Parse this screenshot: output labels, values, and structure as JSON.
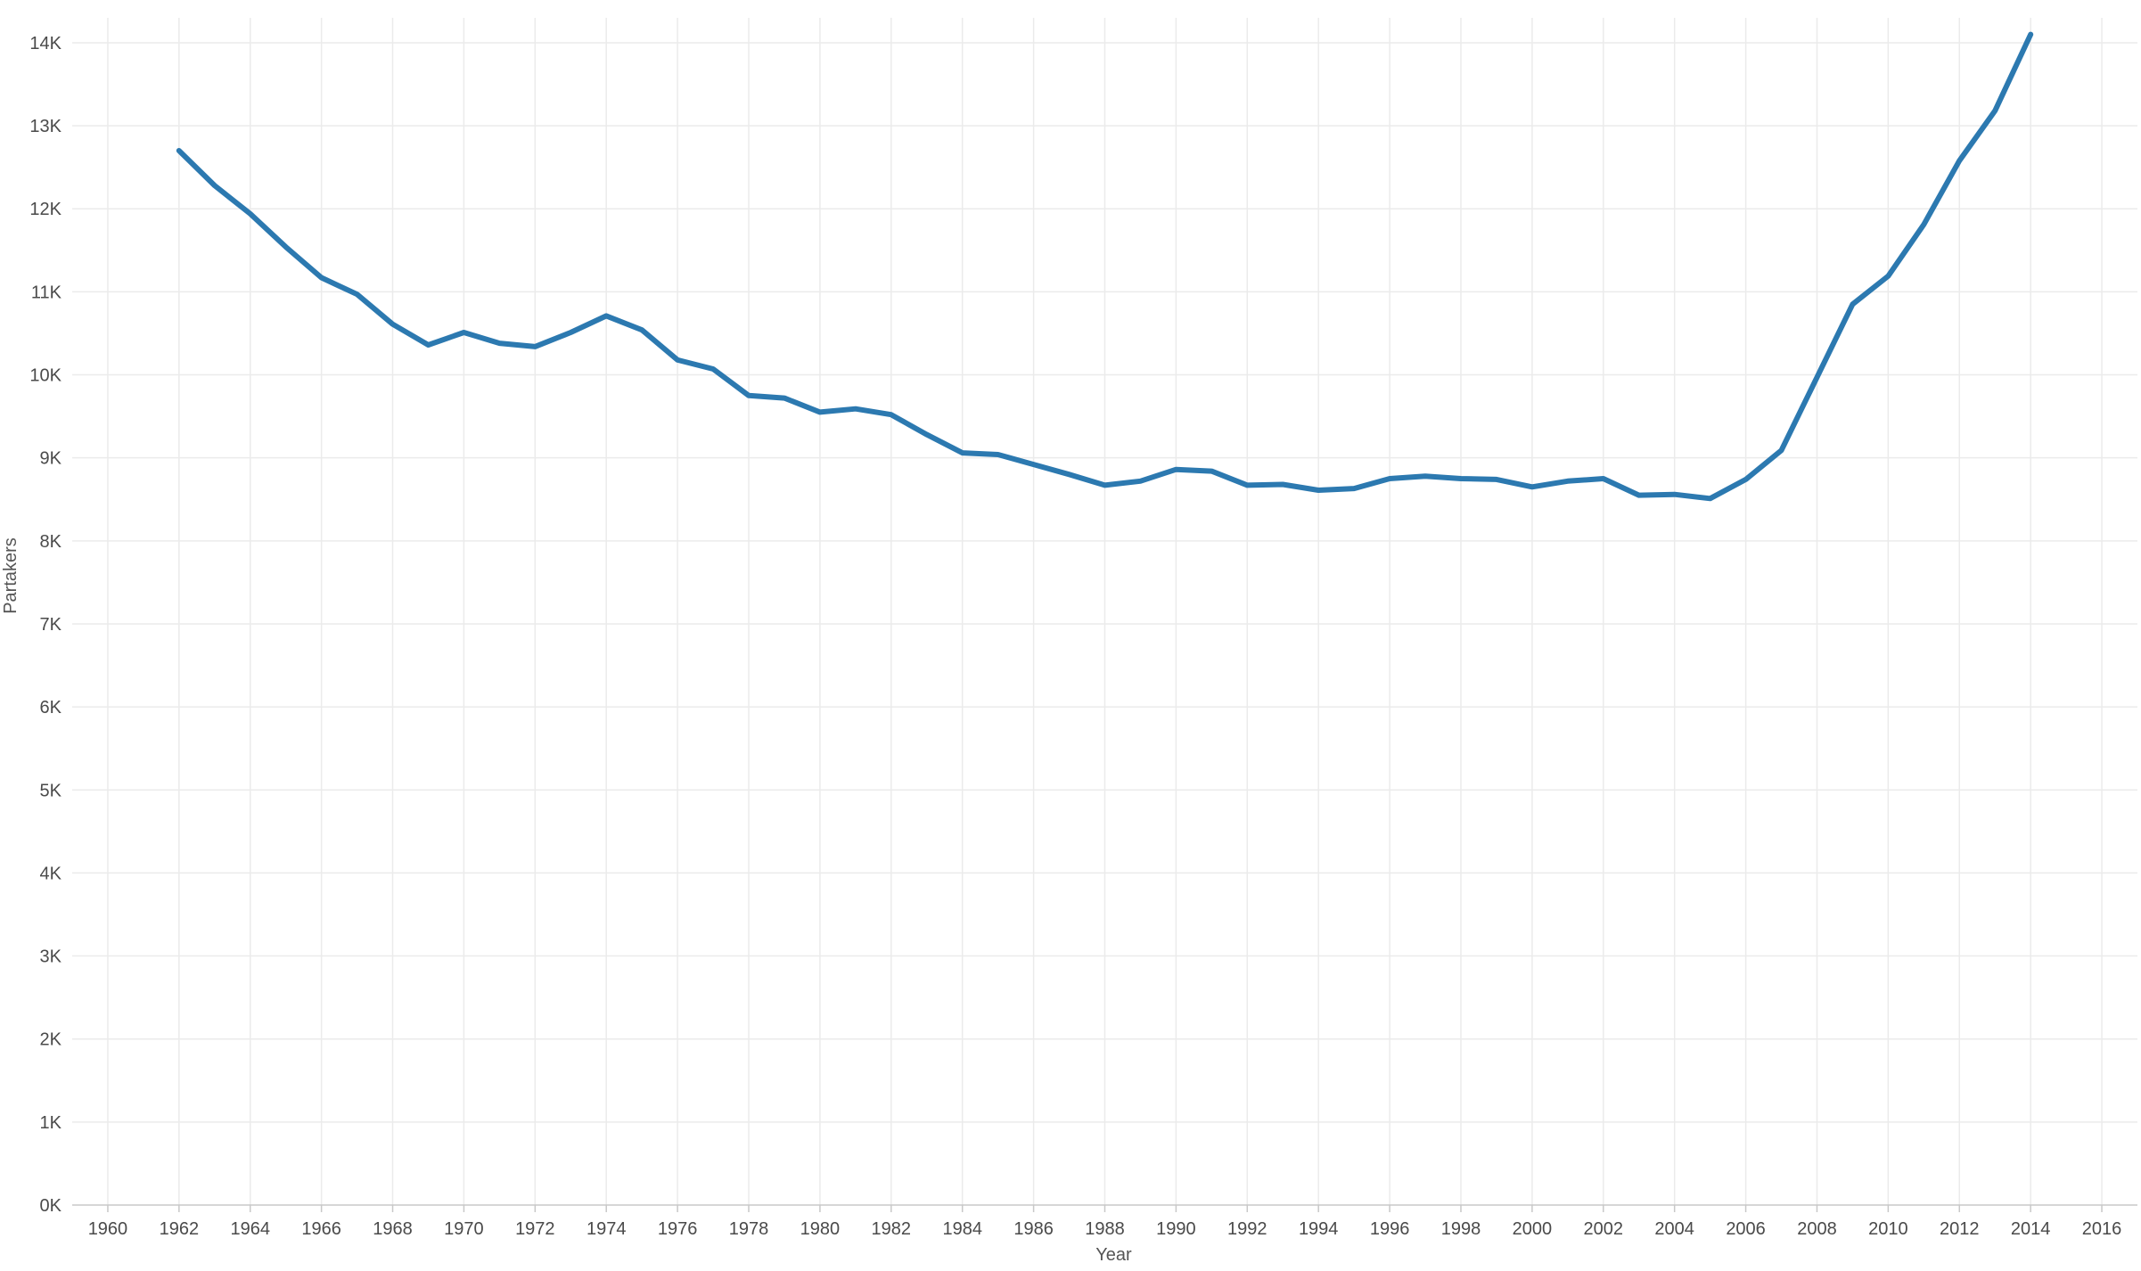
{
  "chart_data": {
    "type": "line",
    "xlabel": "Year",
    "ylabel": "Partakers",
    "xlim": [
      1959,
      2017
    ],
    "ylim": [
      0,
      14300
    ],
    "x_ticks": [
      1960,
      1962,
      1964,
      1966,
      1968,
      1970,
      1972,
      1974,
      1976,
      1978,
      1980,
      1982,
      1984,
      1986,
      1988,
      1990,
      1992,
      1994,
      1996,
      1998,
      2000,
      2002,
      2004,
      2006,
      2008,
      2010,
      2012,
      2014,
      2016
    ],
    "y_ticks": [
      0,
      1000,
      2000,
      3000,
      4000,
      5000,
      6000,
      7000,
      8000,
      9000,
      10000,
      11000,
      12000,
      13000,
      14000
    ],
    "y_tick_labels": [
      "0K",
      "1K",
      "2K",
      "3K",
      "4K",
      "5K",
      "6K",
      "7K",
      "8K",
      "9K",
      "10K",
      "11K",
      "12K",
      "13K",
      "14K"
    ],
    "grid": true,
    "series": [
      {
        "color": "#2c79b0",
        "x": [
          1962,
          1963,
          1964,
          1965,
          1966,
          1967,
          1968,
          1969,
          1970,
          1971,
          1972,
          1973,
          1974,
          1975,
          1976,
          1977,
          1978,
          1979,
          1980,
          1981,
          1982,
          1983,
          1984,
          1985,
          1986,
          1987,
          1988,
          1989,
          1990,
          1991,
          1992,
          1993,
          1994,
          1995,
          1996,
          1997,
          1998,
          1999,
          2000,
          2001,
          2002,
          2003,
          2004,
          2005,
          2006,
          2007,
          2008,
          2009,
          2010,
          2011,
          2012,
          2013,
          2014
        ],
        "values": [
          12700,
          12280,
          11940,
          11540,
          11170,
          10970,
          10610,
          10360,
          10510,
          10380,
          10340,
          10510,
          10710,
          10540,
          10180,
          10070,
          9750,
          9720,
          9550,
          9590,
          9520,
          9280,
          9060,
          9040,
          8920,
          8800,
          8670,
          8720,
          8860,
          8840,
          8670,
          8680,
          8610,
          8630,
          8750,
          8780,
          8750,
          8740,
          8650,
          8720,
          8750,
          8550,
          8560,
          8510,
          8740,
          9090,
          9970,
          10850,
          11190,
          11810,
          12580,
          13180,
          14100
        ]
      }
    ]
  }
}
